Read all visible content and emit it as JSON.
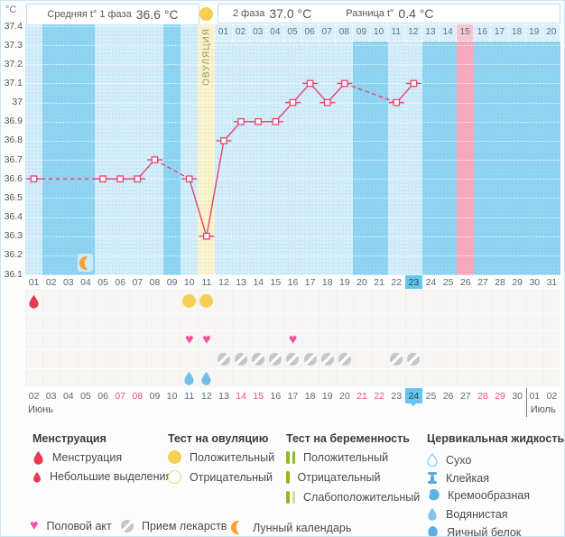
{
  "header": {
    "unit_label": "°C",
    "avg_phase1_label": "Средняя t° 1 фаза",
    "avg_phase1_value": "36.6 °C",
    "phase2_label": "2 фаза",
    "phase2_value": "37.0 °C",
    "diff_label": "Разница t°",
    "diff_value": "0.4 °C",
    "ovulation_dot_icon": "ovulation-positive-circle-icon"
  },
  "chart_data": {
    "type": "line",
    "ylabel": "°C",
    "ylim": [
      36.1,
      37.4
    ],
    "yticks": [
      "37.4",
      "37.3",
      "37.2",
      "37.1",
      "37",
      "36.9",
      "36.8",
      "36.7",
      "36.6",
      "36.5",
      "36.4",
      "36.3",
      "36.2",
      "36.1"
    ],
    "x_axis": "cycle_day",
    "x_range": [
      1,
      31
    ],
    "points": [
      [
        1,
        36.6
      ],
      [
        5,
        36.6
      ],
      [
        6,
        36.6
      ],
      [
        7,
        36.6
      ],
      [
        8,
        36.7
      ],
      [
        10,
        36.6
      ],
      [
        11,
        36.3
      ],
      [
        12,
        36.8
      ],
      [
        13,
        36.9
      ],
      [
        14,
        36.9
      ],
      [
        15,
        36.9
      ],
      [
        16,
        37.0
      ],
      [
        17,
        37.1
      ],
      [
        18,
        37.0
      ],
      [
        19,
        37.1
      ],
      [
        22,
        37.0
      ],
      [
        23,
        37.1
      ]
    ],
    "gap_segments_dashed": true,
    "grid": "dotted-horizontal",
    "ovulation": {
      "day": 11,
      "label": "ОВУЛЯЦИЯ"
    },
    "expected_period_day": 26,
    "dpo_row": {
      "labels": [
        "01",
        "02",
        "03",
        "04",
        "05",
        "06",
        "07",
        "08",
        "09",
        "10",
        "11",
        "12",
        "13",
        "14",
        "15",
        "16",
        "17",
        "18",
        "19",
        "20"
      ],
      "highlighted": "15"
    },
    "lunar_calendar_day": 4
  },
  "rows": {
    "cycle_days": [
      "01",
      "02",
      "03",
      "04",
      "05",
      "06",
      "07",
      "08",
      "09",
      "10",
      "11",
      "12",
      "13",
      "14",
      "15",
      "16",
      "17",
      "18",
      "19",
      "20",
      "21",
      "22",
      "23",
      "24",
      "25",
      "26",
      "27",
      "28",
      "29",
      "30",
      "31"
    ],
    "highlighted_cycle_day": "23",
    "dates": [
      "02",
      "03",
      "04",
      "05",
      "06",
      "07",
      "08",
      "09",
      "10",
      "11",
      "12",
      "13",
      "14",
      "15",
      "16",
      "17",
      "18",
      "19",
      "20",
      "21",
      "22",
      "23",
      "24",
      "25",
      "26",
      "27",
      "28",
      "29",
      "30",
      "01",
      "02"
    ],
    "highlighted_date": "24",
    "weekend_dates": [
      "07",
      "08",
      "14",
      "15",
      "21",
      "22",
      "28",
      "29"
    ],
    "month_left": "Июнь",
    "month_right": "Июль",
    "events": {
      "menstruation_days": [
        1
      ],
      "ovulation_test_positive_days": [
        10,
        11
      ],
      "pregnancy_test_days": [],
      "intercourse_days": [
        10,
        11,
        16
      ],
      "medication_days": [
        12,
        13,
        14,
        15,
        16,
        17,
        18,
        19,
        22,
        23
      ],
      "cervical_fluid_days": [
        10,
        11
      ],
      "cervical_fluid_type": "Водянистая"
    }
  },
  "legend": {
    "groups": [
      {
        "title": "Менструация",
        "items": [
          {
            "icon": "menstruation-drop-icon",
            "label": "Менструация"
          },
          {
            "icon": "spotting-drop-icon",
            "label": "Небольшие выделения"
          }
        ]
      },
      {
        "title": "Тест на овуляцию",
        "items": [
          {
            "icon": "ovulation-positive-circle-icon",
            "label": "Положительный"
          },
          {
            "icon": "ovulation-negative-circle-icon",
            "label": "Отрицательный"
          }
        ]
      },
      {
        "title": "Тест на беременность",
        "items": [
          {
            "icon": "pregnancy-positive-bars-icon",
            "label": "Положительный"
          },
          {
            "icon": "pregnancy-negative-bar-icon",
            "label": "Отрицательный"
          },
          {
            "icon": "pregnancy-weak-bars-icon",
            "label": "Слабоположительный"
          }
        ]
      },
      {
        "title": "Цервикальная жидкость",
        "items": [
          {
            "icon": "fluid-dry-icon",
            "label": "Сухо"
          },
          {
            "icon": "fluid-sticky-icon",
            "label": "Клейкая"
          },
          {
            "icon": "fluid-creamy-icon",
            "label": "Кремообразная"
          },
          {
            "icon": "fluid-watery-icon",
            "label": "Водянистая"
          },
          {
            "icon": "fluid-eggwhite-icon",
            "label": "Яичный белок"
          }
        ]
      }
    ],
    "extra": [
      {
        "icon": "intercourse-heart-icon",
        "label": "Половой акт"
      },
      {
        "icon": "medication-pill-icon",
        "label": "Прием лекарств"
      },
      {
        "icon": "lunar-moon-icon",
        "label": "Лунный календарь"
      }
    ]
  },
  "colors": {
    "chart_bg": "#8bd2f1",
    "data_column": "#cbe9f8",
    "ovulation_band": "#f6efc3",
    "expected_period_band": "#f4a9bf",
    "dpo_cell": "#daeffa",
    "dpo_cell_pink": "#f8c5d2",
    "temp_line": "#e8416e",
    "today_highlight": "#64c6ef",
    "weekend_text": "#ef5380",
    "menstruation": "#e83a50",
    "ovulation_test": "#f6cf54",
    "intercourse": "#f650a0",
    "medication": "#c6c6c6",
    "cervical_fluid": "#6fc0ee",
    "lunar": "#f3a234",
    "pregnancy_positive": "#8cb821",
    "pregnancy_weak": "#cfe193"
  }
}
